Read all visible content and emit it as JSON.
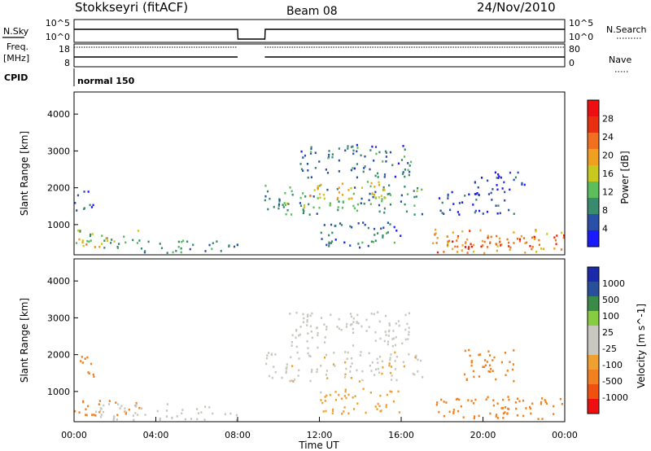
{
  "header": {
    "station": "Stokkseyri (fitACF)",
    "beam": "Beam 08",
    "date": "24/Nov/2010"
  },
  "left_labels": {
    "nsky": "N.Sky",
    "freq_line1": "Freq.",
    "freq_line2": "[MHz]",
    "cpid": "CPID"
  },
  "right_labels": {
    "nsearch": "N.Search",
    "nave": "Nave"
  },
  "cpid_value": "normal 150",
  "colors": {
    "power_scale": [
      "#1a1aff",
      "#2a4fa8",
      "#3a8a6e",
      "#5cbd5c",
      "#c8c81e",
      "#f0a020",
      "#f07020",
      "#e83010",
      "#ee1010"
    ],
    "velocity_scale": [
      "#ee1010",
      "#f05010",
      "#f08020",
      "#f0a030",
      "#c8c8c0",
      "#c8c8c0",
      "#88cc44",
      "#3a8a4a",
      "#2a4f9a",
      "#1a2aaa"
    ]
  },
  "chart_data": [
    {
      "name": "noise_sky_search",
      "type": "line",
      "y_tick_labels_left": [
        "10^5",
        "10^0"
      ],
      "y_tick_labels_right": [
        "10^5",
        "10^0"
      ],
      "series": [
        {
          "name": "N.Sky",
          "x": [
            "00:00",
            "08:00",
            "08:01",
            "09:20",
            "09:21",
            "24:00"
          ],
          "y": [
            12.0,
            12.0,
            0,
            0,
            12.0,
            12.0
          ]
        },
        {
          "name": "N.Search",
          "x": [
            "00:00",
            "08:00",
            "08:01",
            "09:20",
            "09:21",
            "24:00"
          ],
          "y": [
            12.0,
            12.0,
            0,
            0,
            12.0,
            12.0
          ]
        }
      ]
    },
    {
      "name": "frequency_nave",
      "type": "line",
      "y_tick_labels_left": [
        "18",
        "8"
      ],
      "y_tick_labels_right": [
        "80",
        "0"
      ],
      "series": [
        {
          "name": "Freq. [MHz]",
          "x": [
            "00:00",
            "08:00",
            "09:20",
            "24:00"
          ],
          "y": [
            10,
            10,
            10,
            10
          ]
        },
        {
          "name": "Nave",
          "x": [
            "00:00",
            "08:00",
            "09:20",
            "24:00"
          ],
          "y": [
            70,
            70,
            70,
            70
          ]
        }
      ]
    },
    {
      "name": "power",
      "type": "heatmap",
      "title": "",
      "xlabel": "",
      "ylabel": "Slant Range [km]",
      "ylim": [
        180,
        4600
      ],
      "y_ticks": [
        1000,
        2000,
        3000,
        4000
      ],
      "colorbar_label": "Power [dB]",
      "colorbar_ticks": [
        4,
        8,
        12,
        16,
        20,
        24,
        28
      ],
      "regions": [
        {
          "t0": 0.0,
          "t1": 3.2,
          "r0": 350,
          "r1": 900,
          "level": 14
        },
        {
          "t0": 0.0,
          "t1": 1.0,
          "r0": 1400,
          "r1": 2000,
          "level": 6
        },
        {
          "t0": 0.2,
          "t1": 1.8,
          "r0": 400,
          "r1": 700,
          "level": 24
        },
        {
          "t0": 3.0,
          "t1": 8.0,
          "r0": 250,
          "r1": 600,
          "level": 10
        },
        {
          "t0": 9.3,
          "t1": 17.0,
          "r0": 1300,
          "r1": 2100,
          "level": 12
        },
        {
          "t0": 11.5,
          "t1": 15.5,
          "r0": 1700,
          "r1": 2200,
          "level": 20
        },
        {
          "t0": 11.0,
          "t1": 16.5,
          "r0": 2300,
          "r1": 3200,
          "level": 8
        },
        {
          "t0": 12.0,
          "t1": 16.0,
          "r0": 400,
          "r1": 1100,
          "level": 8
        },
        {
          "t0": 17.5,
          "t1": 24.0,
          "r0": 250,
          "r1": 900,
          "level": 24
        },
        {
          "t0": 17.8,
          "t1": 23.5,
          "r0": 380,
          "r1": 700,
          "level": 29
        },
        {
          "t0": 17.8,
          "t1": 21.5,
          "r0": 1300,
          "r1": 2000,
          "level": 5
        },
        {
          "t0": 19.5,
          "t1": 22.0,
          "r0": 2000,
          "r1": 2500,
          "level": 4
        }
      ]
    },
    {
      "name": "velocity",
      "type": "heatmap",
      "title": "",
      "xlabel": "Time UT",
      "ylabel": "Slant Range [km]",
      "ylim": [
        180,
        4600
      ],
      "y_ticks": [
        1000,
        2000,
        3000,
        4000
      ],
      "x_tick_labels": [
        "00:00",
        "04:00",
        "08:00",
        "12:00",
        "16:00",
        "20:00",
        "00:00"
      ],
      "colorbar_label": "Velocity [m s^-1]",
      "colorbar_ticks": [
        1000,
        500,
        100,
        25,
        -25,
        -100,
        -500,
        -1000
      ],
      "regions": [
        {
          "t0": 0.0,
          "t1": 3.2,
          "r0": 350,
          "r1": 800,
          "level": -300
        },
        {
          "t0": 0.0,
          "t1": 1.0,
          "r0": 1400,
          "r1": 2000,
          "level": -400
        },
        {
          "t0": 1.0,
          "t1": 8.0,
          "r0": 250,
          "r1": 700,
          "level": 50
        },
        {
          "t0": 9.3,
          "t1": 17.0,
          "r0": 1300,
          "r1": 2100,
          "level": 0
        },
        {
          "t0": 10.5,
          "t1": 16.5,
          "r0": 2200,
          "r1": 3200,
          "level": 20
        },
        {
          "t0": 12.0,
          "t1": 16.0,
          "r0": 400,
          "r1": 1100,
          "level": -60
        },
        {
          "t0": 17.5,
          "t1": 24.0,
          "r0": 250,
          "r1": 900,
          "level": -300
        },
        {
          "t0": 19.0,
          "t1": 21.5,
          "r0": 1300,
          "r1": 2200,
          "level": -250
        }
      ]
    }
  ]
}
